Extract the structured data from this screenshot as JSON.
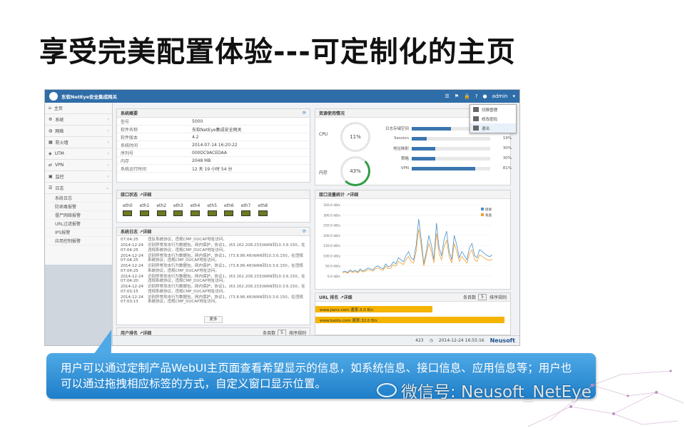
{
  "slide": {
    "title": "享受完美配置体验---可定制化的主页"
  },
  "app": {
    "title": "东软NetEye安全集成网关",
    "user": "admin"
  },
  "sidebar": {
    "items": [
      {
        "label": "主页",
        "icon": "home-icon"
      },
      {
        "label": "系统",
        "icon": "gear-icon"
      },
      {
        "label": "网络",
        "icon": "globe-icon"
      },
      {
        "label": "防火墙",
        "icon": "firewall-icon"
      },
      {
        "label": "UTM",
        "icon": "shield-icon"
      },
      {
        "label": "VPN",
        "icon": "vpn-icon"
      },
      {
        "label": "监控",
        "icon": "monitor-icon"
      },
      {
        "label": "日志",
        "icon": "list-icon"
      }
    ],
    "subitems": [
      "系统日志",
      "防病毒报警",
      "僵尸网络报警",
      "URL过滤报警",
      "IPS报警",
      "应用控制报警"
    ]
  },
  "sysinfo": {
    "title": "系统概要",
    "rows": [
      {
        "k": "型号",
        "v": "5000"
      },
      {
        "k": "软件名称",
        "v": "东软NetEye集成安全网关"
      },
      {
        "k": "软件版本",
        "v": "4.2"
      },
      {
        "k": "系统时间",
        "v": "2014-07-14 16:20:22"
      },
      {
        "k": "序列号",
        "v": "000DC9ACEDAA"
      },
      {
        "k": "内存",
        "v": "2048 MB"
      },
      {
        "k": "系统运行时间",
        "v": "12 天 19 小时 54 分"
      }
    ]
  },
  "ports": {
    "title": "接口状态 ↗详细",
    "items": [
      "eth0",
      "eth1",
      "eth2",
      "eth3",
      "eth4",
      "eth5",
      "eth6",
      "eth7",
      "eth8"
    ]
  },
  "log": {
    "title": "系统日志 ↗详细",
    "rows": [
      {
        "ts": "07:04:25",
        "tx": "违反系统协议，违规CMP_DUCAP地址访问。"
      },
      {
        "ts": "2014-12-24 07:04:25",
        "tx": "识别异常攻击行为数据包，网内保护，协议1，(63.162.208.233)WAN到10.3.6.150，在违规系统协议，违规CMP_DUCAP地址访问。"
      },
      {
        "ts": "2014-12-24 07:04:25",
        "tx": "识别异常攻击行为数据包，网内保护，协议1，(73.8.86.48)WAN到10.3.6.150，在违规系统协议，违规CMP_DUCAP地址访问。"
      },
      {
        "ts": "2014-12-24 07:04:25",
        "tx": "识别异常攻击行为数据包，网内保护，协议1，(73.8.86.48)WAN到10.3.6.150，在违规系统协议，违规CMP_DUCAP地址访问。"
      },
      {
        "ts": "2014-12-24 07:04:20",
        "tx": "识别异常攻击行为数据包，网内保护，协议1，(63.162.208.233)WAN到10.3.6.150，在违规系统协议，违规CMP_DUCAP地址访问。"
      },
      {
        "ts": "2014-12-24 07:03:15",
        "tx": "识别异常攻击行为数据包，网内保护，协议1，(63.162.208.233)WAN到10.3.6.150，在违规系统协议，违规CMP_DUCAP地址访问。"
      },
      {
        "ts": "2014-12-24 07:03:13",
        "tx": "识别异常攻击行为数据包，网内保护，协议1，(73.8.86.48)WAN到10.3.6.150，在违规系统协议，违规CMP_DUCAP地址访问。"
      }
    ],
    "more": "更多"
  },
  "app_rank": {
    "title": "用户排名 ↗详细",
    "page_label": "条目数",
    "page_value": "5",
    "sort_label": "排序规则"
  },
  "resource": {
    "title": "资源使用情况",
    "cpu_label": "CPU",
    "cpu_value": "11%",
    "cpu_frac": 0.11,
    "mem_label": "内存",
    "mem_value": "43%",
    "mem_frac": 0.43,
    "bars": [
      {
        "label": "日志存储空间",
        "pct": "",
        "value": 0.5
      },
      {
        "label": "Session",
        "pct": "19%",
        "value": 0.19
      },
      {
        "label": "地址映射",
        "pct": "30%",
        "value": 0.3
      },
      {
        "label": "策略",
        "pct": "30%",
        "value": 0.3
      },
      {
        "label": "VPN",
        "pct": "81%",
        "value": 0.81
      }
    ]
  },
  "traffic": {
    "title": "接口流量统计 ↗详细",
    "legend": [
      "接收",
      "发送"
    ]
  },
  "chart_data": {
    "type": "line",
    "ylim": [
      0,
      350
    ],
    "yticks": [
      "0.0 kB/s",
      "50.0 kB/s",
      "100.0 kB/s",
      "150.0 kB/s",
      "200.0 kB/s",
      "250.0 kB/s",
      "300.0 kB/s",
      "350.0 kB/s"
    ],
    "series": [
      {
        "name": "接收",
        "values": [
          20,
          25,
          18,
          30,
          22,
          28,
          20,
          35,
          25,
          30,
          40,
          35,
          30,
          45,
          50,
          40,
          35,
          60,
          45,
          50,
          70,
          60,
          90,
          80,
          70,
          100,
          120,
          90,
          80,
          150,
          280,
          180,
          60,
          120,
          200,
          150,
          80,
          260,
          140,
          100,
          180,
          220,
          120,
          80,
          200,
          150,
          90,
          120,
          100,
          80,
          140,
          160,
          100,
          90,
          130,
          120,
          110,
          100,
          95,
          105
        ]
      },
      {
        "name": "发送",
        "values": [
          15,
          20,
          14,
          24,
          18,
          22,
          16,
          28,
          20,
          24,
          32,
          28,
          24,
          36,
          40,
          32,
          28,
          48,
          36,
          40,
          56,
          48,
          72,
          64,
          56,
          80,
          96,
          72,
          64,
          120,
          230,
          150,
          50,
          100,
          160,
          120,
          64,
          210,
          112,
          80,
          145,
          176,
          96,
          64,
          160,
          120,
          72,
          96,
          80,
          64,
          112,
          128,
          80,
          72,
          104,
          96,
          88,
          80,
          76,
          84
        ]
      }
    ]
  },
  "url": {
    "title": "URL 排名 ↗详细",
    "page_label": "条目数",
    "page_value": "5",
    "sort_label": "排序规则",
    "rows": [
      {
        "label": "www.jianx.com 速率:3.0 B/s"
      },
      {
        "label": "www.baidu.com 速率:32.0 B/s"
      }
    ]
  },
  "status": {
    "count": "423",
    "time": "2014-12-24 16:55:16",
    "brand": "Neusoft"
  },
  "dropdown": {
    "items": [
      "切换管理",
      "修改密码",
      "退出"
    ]
  },
  "callout": {
    "text": "用户可以通过定制产品WebUI主页面查看希望显示的信息，如系统信息、接口信息、应用信息等；用户也可以通过拖拽相应标签的方式，自定义窗口显示位置。"
  },
  "watermark": {
    "text": "微信号: Neusoft_NetEye"
  },
  "colors": {
    "topbar": "#2f6da8",
    "callout": "#3a95db",
    "bar": "#3a75b0",
    "url_bar": "#f5b400",
    "recv": "#4a90c8",
    "send": "#f0a030"
  }
}
